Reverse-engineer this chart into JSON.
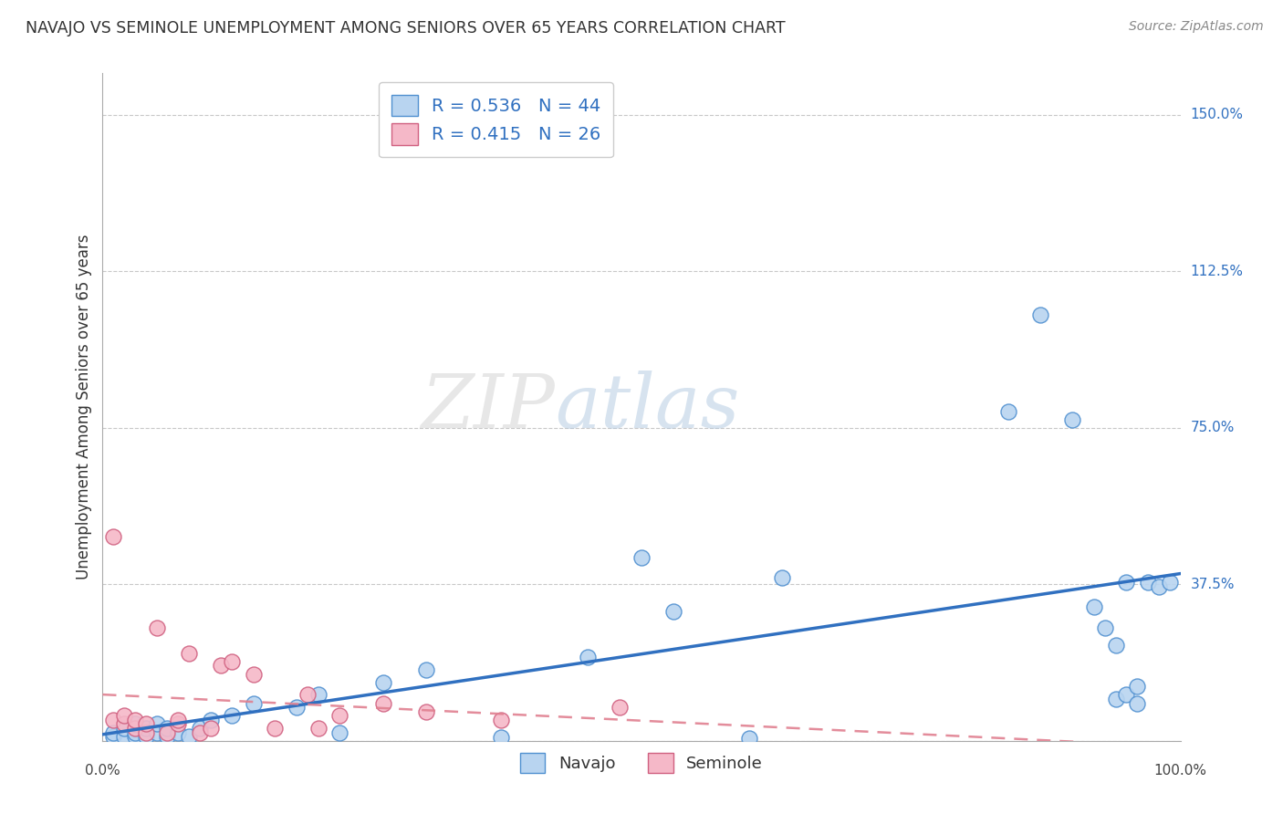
{
  "title": "NAVAJO VS SEMINOLE UNEMPLOYMENT AMONG SENIORS OVER 65 YEARS CORRELATION CHART",
  "source": "Source: ZipAtlas.com",
  "ylabel": "Unemployment Among Seniors over 65 years",
  "xlim": [
    0,
    1.0
  ],
  "ylim": [
    0,
    1.6
  ],
  "ytick_labels": [
    "0.0%",
    "37.5%",
    "75.0%",
    "112.5%",
    "150.0%"
  ],
  "ytick_values": [
    0,
    0.375,
    0.75,
    1.125,
    1.5
  ],
  "navajo_R": "0.536",
  "navajo_N": "44",
  "seminole_R": "0.415",
  "seminole_N": "26",
  "navajo_color": "#b8d4f0",
  "seminole_color": "#f5b8c8",
  "navajo_edge_color": "#5090d0",
  "seminole_edge_color": "#d06080",
  "navajo_line_color": "#3070c0",
  "seminole_line_color": "#e08090",
  "legend_text_color": "#3070c0",
  "watermark_zip": "ZIP",
  "watermark_atlas": "atlas",
  "navajo_x": [
    0.01,
    0.01,
    0.02,
    0.02,
    0.03,
    0.03,
    0.03,
    0.04,
    0.04,
    0.05,
    0.05,
    0.06,
    0.06,
    0.07,
    0.08,
    0.09,
    0.1,
    0.12,
    0.14,
    0.18,
    0.2,
    0.22,
    0.26,
    0.3,
    0.37,
    0.45,
    0.5,
    0.53,
    0.6,
    0.63,
    0.84,
    0.87,
    0.9,
    0.92,
    0.93,
    0.94,
    0.94,
    0.95,
    0.95,
    0.96,
    0.96,
    0.97,
    0.98,
    0.99
  ],
  "navajo_y": [
    0.01,
    0.02,
    0.01,
    0.03,
    0.01,
    0.02,
    0.04,
    0.01,
    0.03,
    0.02,
    0.04,
    0.01,
    0.03,
    0.02,
    0.01,
    0.03,
    0.05,
    0.06,
    0.09,
    0.08,
    0.11,
    0.02,
    0.14,
    0.17,
    0.008,
    0.2,
    0.44,
    0.31,
    0.007,
    0.39,
    0.79,
    1.02,
    0.77,
    0.32,
    0.27,
    0.23,
    0.1,
    0.11,
    0.38,
    0.13,
    0.09,
    0.38,
    0.37,
    0.38
  ],
  "seminole_x": [
    0.01,
    0.01,
    0.02,
    0.02,
    0.03,
    0.03,
    0.04,
    0.04,
    0.05,
    0.06,
    0.07,
    0.07,
    0.08,
    0.09,
    0.1,
    0.11,
    0.12,
    0.14,
    0.16,
    0.19,
    0.2,
    0.22,
    0.26,
    0.3,
    0.37,
    0.48
  ],
  "seminole_y": [
    0.49,
    0.05,
    0.04,
    0.06,
    0.03,
    0.05,
    0.02,
    0.04,
    0.27,
    0.02,
    0.04,
    0.05,
    0.21,
    0.02,
    0.03,
    0.18,
    0.19,
    0.16,
    0.03,
    0.11,
    0.03,
    0.06,
    0.09,
    0.07,
    0.05,
    0.08
  ],
  "background_color": "#ffffff",
  "grid_color": "#c8c8c8"
}
